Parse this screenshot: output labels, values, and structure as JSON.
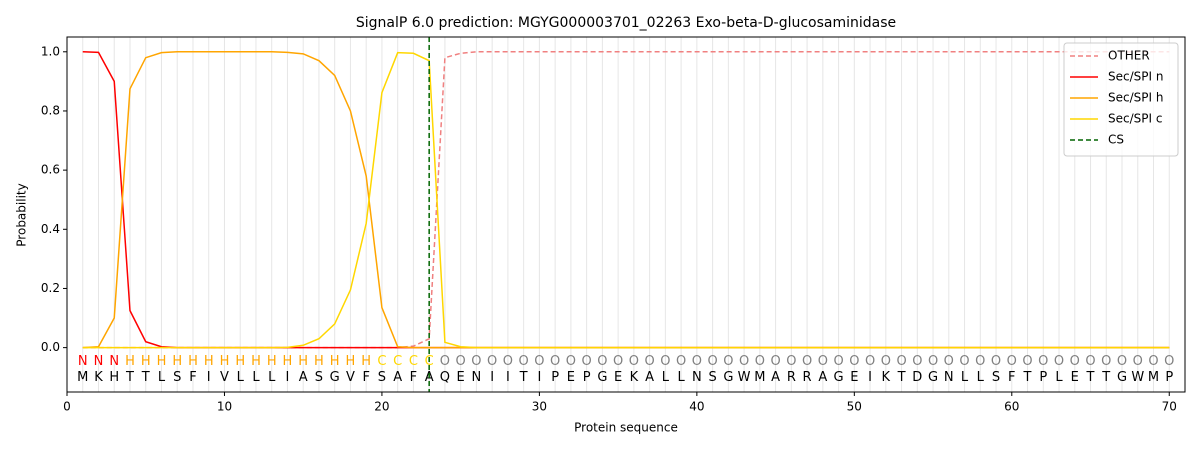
{
  "chart_data": {
    "type": "line",
    "title": "SignalP 6.0 prediction: MGYG000003701_02263 Exo-beta-D-glucosaminidase",
    "x_label": "Protein sequence",
    "y_label": "Probability",
    "xlim": [
      0,
      71
    ],
    "ylim": [
      -0.15,
      1.05
    ],
    "xticks": [
      0,
      10,
      20,
      30,
      40,
      50,
      60,
      70
    ],
    "yticks": [
      {
        "value": 0,
        "label": "0.0"
      },
      {
        "value": 0.2,
        "label": "0.2"
      },
      {
        "value": 0.4,
        "label": "0.4"
      },
      {
        "value": 0.6,
        "label": "0.6"
      },
      {
        "value": 0.8,
        "label": "0.8"
      },
      {
        "value": 1,
        "label": "1.0"
      }
    ],
    "x": [
      1,
      2,
      3,
      4,
      5,
      6,
      7,
      8,
      9,
      10,
      11,
      12,
      13,
      14,
      15,
      16,
      17,
      18,
      19,
      20,
      21,
      22,
      23,
      24,
      25,
      26,
      27,
      28,
      29,
      30,
      31,
      32,
      33,
      34,
      35,
      36,
      37,
      38,
      39,
      40,
      41,
      42,
      43,
      44,
      45,
      46,
      47,
      48,
      49,
      50,
      51,
      52,
      53,
      54,
      55,
      56,
      57,
      58,
      59,
      60,
      61,
      62,
      63,
      64,
      65,
      66,
      67,
      68,
      69,
      70
    ],
    "residues": [
      "M",
      "K",
      "H",
      "T",
      "T",
      "L",
      "S",
      "F",
      "I",
      "V",
      "L",
      "L",
      "L",
      "I",
      "A",
      "S",
      "G",
      "V",
      "F",
      "S",
      "A",
      "F",
      "A",
      "Q",
      "E",
      "N",
      "I",
      "I",
      "T",
      "I",
      "P",
      "E",
      "P",
      "G",
      "E",
      "K",
      "A",
      "L",
      "L",
      "N",
      "S",
      "G",
      "W",
      "M",
      "A",
      "R",
      "R",
      "A",
      "G",
      "E",
      "I",
      "K",
      "T",
      "D",
      "G",
      "N",
      "L",
      "L",
      "S",
      "F",
      "T",
      "P",
      "L",
      "E",
      "T",
      "T",
      "G",
      "W",
      "M",
      "P"
    ],
    "labels": [
      "N",
      "N",
      "N",
      "H",
      "H",
      "H",
      "H",
      "H",
      "H",
      "H",
      "H",
      "H",
      "H",
      "H",
      "H",
      "H",
      "H",
      "H",
      "H",
      "C",
      "C",
      "C",
      "C",
      "O",
      "O",
      "O",
      "O",
      "O",
      "O",
      "O",
      "O",
      "O",
      "O",
      "O",
      "O",
      "O",
      "O",
      "O",
      "O",
      "O",
      "O",
      "O",
      "O",
      "O",
      "O",
      "O",
      "O",
      "O",
      "O",
      "O",
      "O",
      "O",
      "O",
      "O",
      "O",
      "O",
      "O",
      "O",
      "O",
      "O",
      "O",
      "O",
      "O",
      "O",
      "O",
      "O",
      "O",
      "O",
      "O",
      "O"
    ],
    "label_colors": {
      "N": "#ff0000",
      "H": "#ffa500",
      "C": "#ffd700",
      "O": "#808080"
    },
    "grid": true,
    "legend": "upper right",
    "series": [
      {
        "name": "OTHER",
        "color": "#f08080",
        "dash": true,
        "values": [
          0,
          0,
          0,
          0,
          0,
          0,
          0,
          0,
          0,
          0,
          0,
          0,
          0,
          0,
          0,
          0,
          0,
          0,
          0,
          0,
          0,
          0.005,
          0.03,
          0.98,
          0.995,
          1,
          1,
          1,
          1,
          1,
          1,
          1,
          1,
          1,
          1,
          1,
          1,
          1,
          1,
          1,
          1,
          1,
          1,
          1,
          1,
          1,
          1,
          1,
          1,
          1,
          1,
          1,
          1,
          1,
          1,
          1,
          1,
          1,
          1,
          1,
          1,
          1,
          1,
          1,
          1,
          1,
          1,
          1,
          1,
          1
        ]
      },
      {
        "name": "Sec/SPI n",
        "color": "#ff0000",
        "values": [
          1,
          0.998,
          0.9,
          0.125,
          0.02,
          0.003,
          0,
          0,
          0,
          0,
          0,
          0,
          0,
          0,
          0,
          0,
          0,
          0,
          0,
          0,
          0,
          0,
          0,
          0,
          0,
          0,
          0,
          0,
          0,
          0,
          0,
          0,
          0,
          0,
          0,
          0,
          0,
          0,
          0,
          0,
          0,
          0,
          0,
          0,
          0,
          0,
          0,
          0,
          0,
          0,
          0,
          0,
          0,
          0,
          0,
          0,
          0,
          0,
          0,
          0,
          0,
          0,
          0,
          0,
          0,
          0,
          0,
          0,
          0,
          0
        ]
      },
      {
        "name": "Sec/SPI h",
        "color": "#ffa500",
        "values": [
          0,
          0.003,
          0.1,
          0.875,
          0.98,
          0.997,
          1,
          1,
          1,
          1,
          1,
          1,
          1,
          0.998,
          0.993,
          0.97,
          0.92,
          0.8,
          0.58,
          0.135,
          0.003,
          0,
          0,
          0,
          0,
          0,
          0,
          0,
          0,
          0,
          0,
          0,
          0,
          0,
          0,
          0,
          0,
          0,
          0,
          0,
          0,
          0,
          0,
          0,
          0,
          0,
          0,
          0,
          0,
          0,
          0,
          0,
          0,
          0,
          0,
          0,
          0,
          0,
          0,
          0,
          0,
          0,
          0,
          0,
          0,
          0,
          0,
          0,
          0,
          0
        ]
      },
      {
        "name": "Sec/SPI c",
        "color": "#ffd700",
        "values": [
          0,
          0,
          0,
          0,
          0,
          0,
          0,
          0,
          0,
          0,
          0,
          0,
          0,
          0.001,
          0.008,
          0.03,
          0.08,
          0.195,
          0.42,
          0.862,
          0.997,
          0.995,
          0.97,
          0.018,
          0.003,
          0,
          0,
          0,
          0,
          0,
          0,
          0,
          0,
          0,
          0,
          0,
          0,
          0,
          0,
          0,
          0,
          0,
          0,
          0,
          0,
          0,
          0,
          0,
          0,
          0,
          0,
          0,
          0,
          0,
          0,
          0,
          0,
          0,
          0,
          0,
          0,
          0,
          0,
          0,
          0,
          0,
          0,
          0,
          0,
          0
        ]
      }
    ],
    "cs": {
      "name": "CS",
      "x": 23,
      "color": "#006400"
    }
  }
}
